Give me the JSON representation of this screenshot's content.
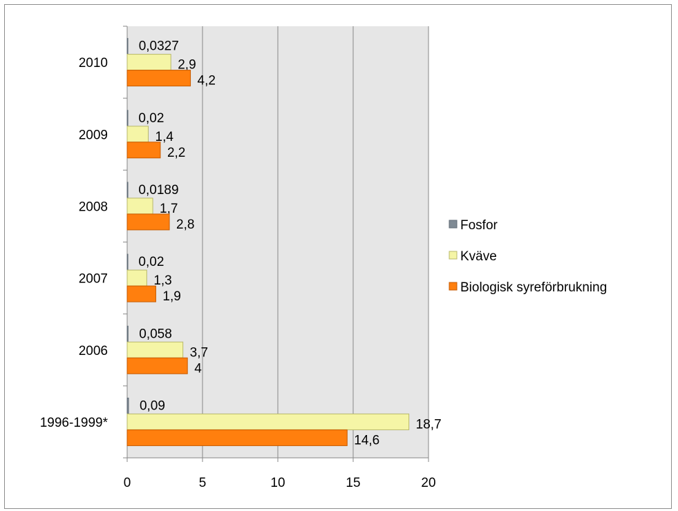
{
  "chart_data": {
    "type": "bar",
    "orientation": "horizontal",
    "categories": [
      "2010",
      "2009",
      "2008",
      "2007",
      "2006",
      "1996-1999*"
    ],
    "series": [
      {
        "name": "Fosfor",
        "color": "#7f8a94",
        "values": [
          0.0327,
          0.02,
          0.0189,
          0.02,
          0.058,
          0.09
        ],
        "labels": [
          "0,0327",
          "0,02",
          "0,0189",
          "0,02",
          "0,058",
          "0,09"
        ]
      },
      {
        "name": "Kväve",
        "color": "#f5f5a6",
        "values": [
          2.9,
          1.4,
          1.7,
          1.3,
          3.7,
          18.7
        ],
        "labels": [
          "2,9",
          "1,4",
          "1,7",
          "1,3",
          "3,7",
          "18,7"
        ]
      },
      {
        "name": "Biologisk syreförbrukning",
        "color": "#ff7f0e",
        "values": [
          4.2,
          2.2,
          2.8,
          1.9,
          4,
          14.6
        ],
        "labels": [
          "4,2",
          "2,2",
          "2,8",
          "1,9",
          "4",
          "14,6"
        ]
      }
    ],
    "x_ticks": [
      "0",
      "5",
      "10",
      "15",
      "20"
    ],
    "xlim": [
      0,
      20
    ],
    "grid": true,
    "legend_position": "right",
    "title": "",
    "xlabel": "",
    "ylabel": ""
  }
}
